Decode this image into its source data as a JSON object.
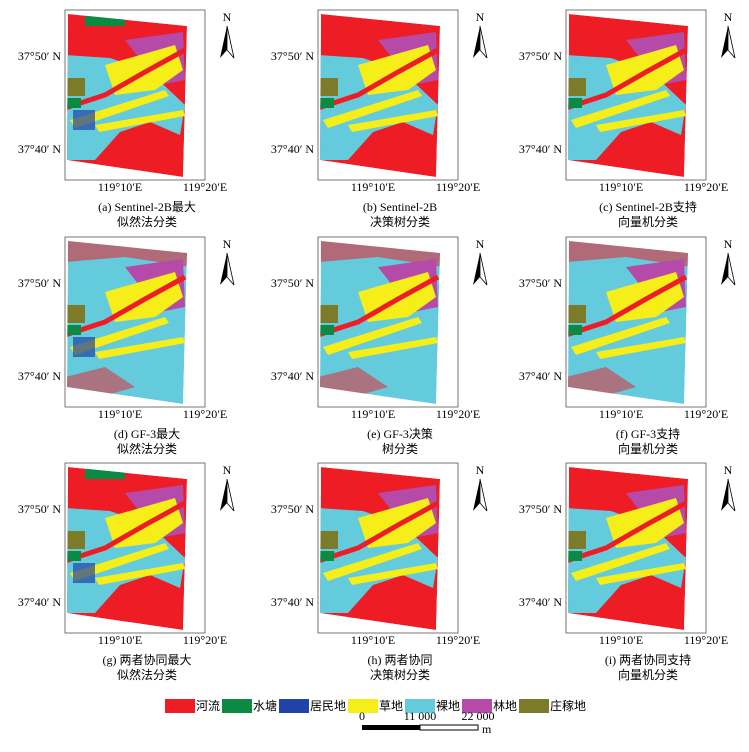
{
  "panels": [
    {
      "caption": [
        "(a) Sentinel-2B最大",
        "似然法分类"
      ],
      "lat": [
        "37°50′ N",
        "37°40′ N"
      ],
      "lon": [
        "119°10′E",
        "119°20′E"
      ],
      "north": "N"
    },
    {
      "caption": [
        "(b) Sentinel-2B",
        "决策树分类"
      ],
      "lat": [
        "37°50′ N",
        "37°40′ N"
      ],
      "lon": [
        "119°10′E",
        "119°20′E"
      ],
      "north": "N"
    },
    {
      "caption": [
        "(c) Sentinel-2B支持",
        "向量机分类"
      ],
      "lat": [
        "37°50′ N",
        "37°40′ N"
      ],
      "lon": [
        "119°10′E",
        "119°20′E"
      ],
      "north": "N"
    },
    {
      "caption": [
        "(d) GF-3最大",
        "似然法分类"
      ],
      "lat": [
        "37°50′ N",
        "37°40′ N"
      ],
      "lon": [
        "119°10′E",
        "119°20′E"
      ],
      "north": "N"
    },
    {
      "caption": [
        "(e) GF-3决策",
        "树分类"
      ],
      "lat": [
        "37°50′ N",
        "37°40′ N"
      ],
      "lon": [
        "119°10′E",
        "119°20′E"
      ],
      "north": "N"
    },
    {
      "caption": [
        "(f) GF-3支持",
        "向量机分类"
      ],
      "lat": [
        "37°50′ N",
        "37°40′ N"
      ],
      "lon": [
        "119°10′E",
        "119°20′E"
      ],
      "north": "N"
    },
    {
      "caption": [
        "(g) 两者协同最大",
        "似然法分类"
      ],
      "lat": [
        "37°50′ N",
        "37°40′ N"
      ],
      "lon": [
        "119°10′E",
        "119°20′E"
      ],
      "north": "N"
    },
    {
      "caption": [
        "(h) 两者协同",
        "决策树分类"
      ],
      "lat": [
        "37°50′ N",
        "37°40′ N"
      ],
      "lon": [
        "119°10′E",
        "119°20′E"
      ],
      "north": "N"
    },
    {
      "caption": [
        "(i) 两者协同支持",
        "向量机分类"
      ],
      "lat": [
        "37°50′ N",
        "37°40′ N"
      ],
      "lon": [
        "119°10′E",
        "119°20′E"
      ],
      "north": "N"
    }
  ],
  "legend": [
    {
      "label": "河流",
      "color": "#ee1c24"
    },
    {
      "label": "水塘",
      "color": "#0a8a43"
    },
    {
      "label": "居民地",
      "color": "#2142a6"
    },
    {
      "label": "草地",
      "color": "#f5ee19"
    },
    {
      "label": "裸地",
      "color": "#64cbdd"
    },
    {
      "label": "林地",
      "color": "#b54aa8"
    },
    {
      "label": "庄稼地",
      "color": "#7b7b2a"
    }
  ],
  "scale": {
    "labels": [
      "0",
      "11 000",
      "22 000"
    ],
    "unit": "m"
  }
}
